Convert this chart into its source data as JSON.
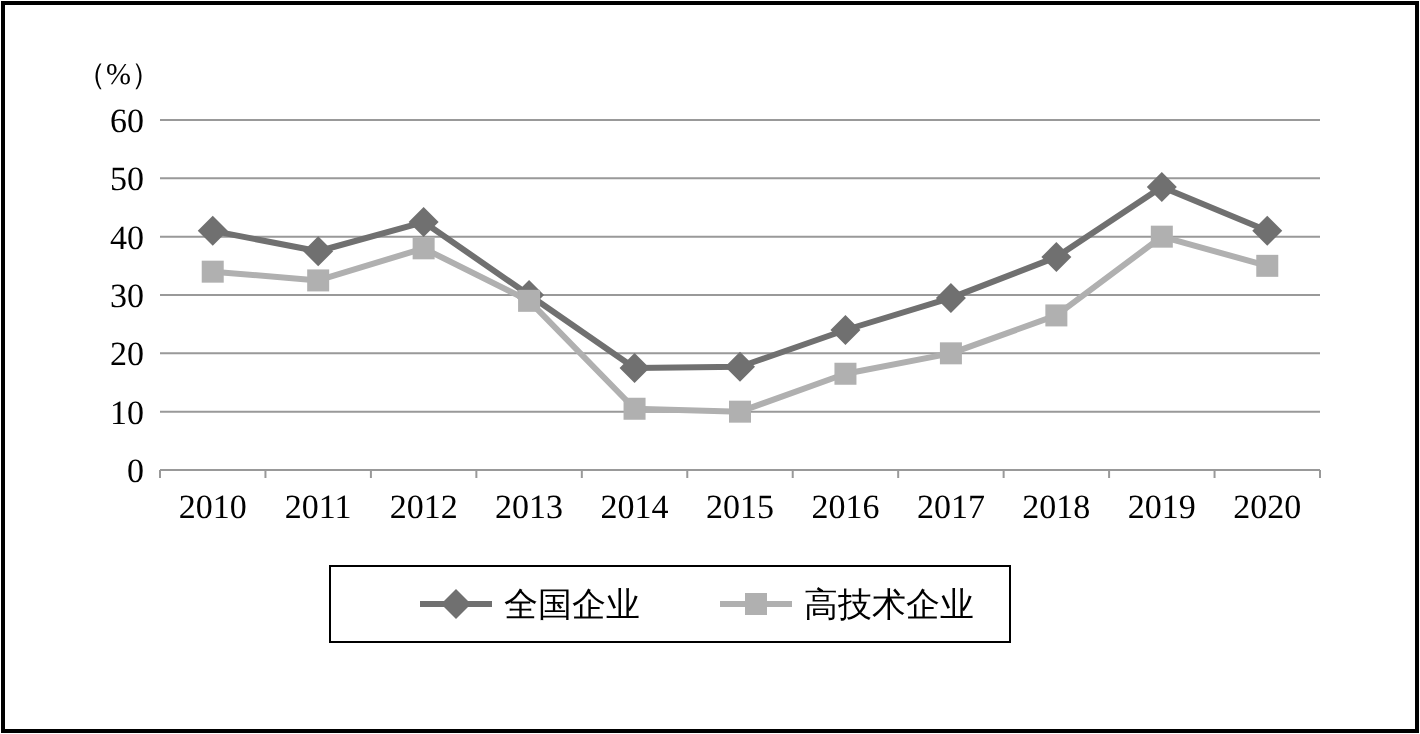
{
  "chart_data": {
    "type": "line",
    "ylabel": "（%）",
    "categories": [
      "2010",
      "2011",
      "2012",
      "2013",
      "2014",
      "2015",
      "2016",
      "2017",
      "2018",
      "2019",
      "2020"
    ],
    "series": [
      {
        "name": "全国企业",
        "color": "#707070",
        "marker": "diamond",
        "values": [
          41,
          37.5,
          42.5,
          30,
          17.5,
          17.7,
          24,
          29.5,
          36.5,
          48.5,
          41
        ]
      },
      {
        "name": "高技术企业",
        "color": "#b0b0b0",
        "marker": "square",
        "values": [
          34,
          32.5,
          38,
          29,
          10.5,
          10,
          16.5,
          20,
          26.5,
          40,
          35
        ]
      }
    ],
    "ylim": [
      0,
      60
    ],
    "yticks": [
      0,
      10,
      20,
      30,
      40,
      50,
      60
    ],
    "grid": "y",
    "legend": "bottom",
    "line_style": "solid"
  }
}
